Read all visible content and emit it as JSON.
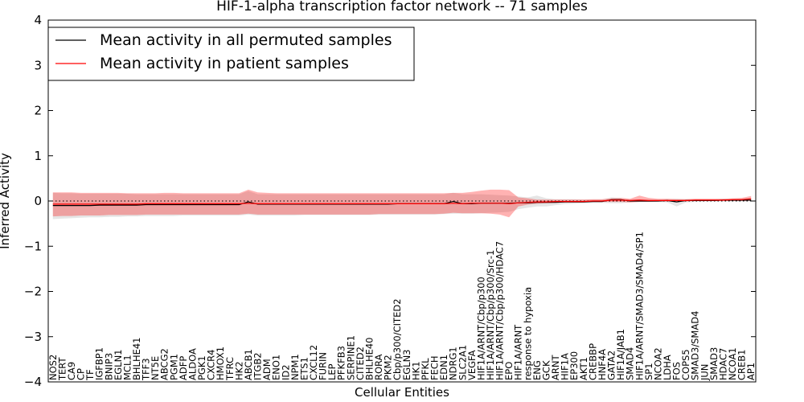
{
  "chart_data": {
    "type": "line",
    "title": "HIF-1-alpha transcription factor network -- 71 samples",
    "xlabel": "Cellular Entities",
    "ylabel": "Inferred Activity",
    "ylim": [
      -4,
      4
    ],
    "yticks": [
      -4,
      -3,
      -2,
      -1,
      0,
      1,
      2,
      3,
      4
    ],
    "reference_line": 0,
    "legend": {
      "position": "top-left",
      "entries": [
        {
          "label": "Mean activity in all permuted samples",
          "color": "#000000"
        },
        {
          "label": "Mean activity in patient samples",
          "color": "#ff0000"
        }
      ]
    },
    "colors": {
      "permuted_line": "#000000",
      "permuted_band": "#aaaaaa",
      "patient_line": "#ff0000",
      "patient_band": "#ff0000"
    },
    "categories": [
      "NOS2",
      "TERT",
      "CA9",
      "CP",
      "TF",
      "IGFBP1",
      "BNIP3",
      "EGLN1",
      "MCL1",
      "BHLHE41",
      "TFF3",
      "NT5E",
      "ABCG2",
      "PGM1",
      "ADFP",
      "ALDOA",
      "PGK1",
      "CXCR4",
      "HMOX1",
      "TFRC",
      "HK2",
      "ABCB1",
      "ITGB2",
      "ADM",
      "ENO1",
      "ID2",
      "NPM1",
      "ETS1",
      "CXCL12",
      "FURIN",
      "LEP",
      "PFKFB3",
      "SERPINE1",
      "CITED2",
      "BHLHE40",
      "RORA",
      "PKM2",
      "Cbp/p300/CITED2",
      "EGLN3",
      "HK1",
      "PFKL",
      "FECH",
      "EDN1",
      "NDRG1",
      "SLC2A1",
      "VEGFA",
      "HIF1A/ARNT/Cbp/p300",
      "HIF1A/ARNT/Cbp/p300/Src-1",
      "HIF1A/ARNT/Cbp/p300/HDAC7",
      "EPO",
      "HIF1A/ARNT",
      "response to hypoxia",
      "ENG",
      "GCK",
      "ARNT",
      "HIF1A",
      "EP300",
      "AKT1",
      "CREBBP",
      "HNF4A",
      "GATA2",
      "HIF1A/JAB1",
      "SMAD4",
      "HIF1A/ARNT/SMAD3/SMAD4/SP1",
      "SP1",
      "NCOA2",
      "LDHA",
      "FOS",
      "COPS5",
      "SMAD3/SMAD4",
      "JUN",
      "SMAD3",
      "HDAC7",
      "NCOA1",
      "CREB1",
      "AP1"
    ],
    "series": [
      {
        "name": "Mean activity in all permuted samples",
        "values": [
          -0.1,
          -0.1,
          -0.1,
          -0.1,
          -0.1,
          -0.09,
          -0.09,
          -0.09,
          -0.09,
          -0.09,
          -0.08,
          -0.08,
          -0.08,
          -0.08,
          -0.08,
          -0.08,
          -0.08,
          -0.08,
          -0.08,
          -0.08,
          -0.08,
          -0.02,
          -0.07,
          -0.07,
          -0.07,
          -0.07,
          -0.07,
          -0.07,
          -0.07,
          -0.07,
          -0.07,
          -0.07,
          -0.07,
          -0.07,
          -0.07,
          -0.07,
          -0.07,
          -0.06,
          -0.06,
          -0.06,
          -0.06,
          -0.06,
          -0.06,
          -0.01,
          -0.06,
          -0.06,
          -0.05,
          -0.05,
          -0.05,
          -0.05,
          -0.04,
          -0.04,
          -0.03,
          -0.03,
          -0.03,
          -0.02,
          -0.02,
          -0.02,
          -0.01,
          -0.01,
          0.03,
          0.03,
          0.0,
          0.0,
          0.0,
          0.0,
          0.01,
          -0.02,
          0.01,
          0.01,
          0.01,
          0.01,
          0.02,
          0.02,
          0.02,
          0.02
        ],
        "band_lower": [
          -0.4,
          -0.39,
          -0.38,
          -0.37,
          -0.36,
          -0.36,
          -0.35,
          -0.35,
          -0.34,
          -0.34,
          -0.33,
          -0.33,
          -0.33,
          -0.33,
          -0.32,
          -0.32,
          -0.32,
          -0.32,
          -0.32,
          -0.32,
          -0.32,
          -0.3,
          -0.32,
          -0.32,
          -0.32,
          -0.32,
          -0.32,
          -0.31,
          -0.31,
          -0.31,
          -0.31,
          -0.31,
          -0.31,
          -0.31,
          -0.31,
          -0.3,
          -0.3,
          -0.3,
          -0.3,
          -0.3,
          -0.3,
          -0.3,
          -0.29,
          -0.28,
          -0.28,
          -0.28,
          -0.27,
          -0.26,
          -0.25,
          -0.24,
          -0.18,
          -0.15,
          -0.12,
          -0.12,
          -0.09,
          -0.07,
          -0.06,
          -0.05,
          -0.04,
          -0.04,
          -0.05,
          -0.05,
          -0.03,
          -0.02,
          -0.02,
          -0.02,
          -0.03,
          -0.12,
          -0.03,
          -0.02,
          -0.01,
          -0.01,
          -0.01,
          -0.01,
          -0.01,
          -0.01
        ],
        "band_upper": [
          0.18,
          0.17,
          0.17,
          0.16,
          0.16,
          0.16,
          0.16,
          0.16,
          0.16,
          0.15,
          0.15,
          0.15,
          0.15,
          0.15,
          0.15,
          0.15,
          0.15,
          0.15,
          0.15,
          0.15,
          0.15,
          0.22,
          0.15,
          0.15,
          0.15,
          0.15,
          0.15,
          0.15,
          0.15,
          0.15,
          0.15,
          0.15,
          0.15,
          0.15,
          0.15,
          0.15,
          0.15,
          0.15,
          0.15,
          0.15,
          0.15,
          0.15,
          0.15,
          0.18,
          0.15,
          0.15,
          0.15,
          0.14,
          0.13,
          0.12,
          0.1,
          0.08,
          0.12,
          0.06,
          0.04,
          0.04,
          0.04,
          0.03,
          0.03,
          0.03,
          0.08,
          0.06,
          0.03,
          0.03,
          0.03,
          0.03,
          0.04,
          0.05,
          0.04,
          0.04,
          0.04,
          0.04,
          0.05,
          0.05,
          0.05,
          0.05
        ]
      },
      {
        "name": "Mean activity in patient samples",
        "values": [
          -0.07,
          -0.07,
          -0.07,
          -0.07,
          -0.07,
          -0.07,
          -0.07,
          -0.07,
          -0.07,
          -0.07,
          -0.06,
          -0.06,
          -0.06,
          -0.06,
          -0.06,
          -0.06,
          -0.06,
          -0.06,
          -0.06,
          -0.06,
          -0.06,
          -0.05,
          -0.06,
          -0.06,
          -0.06,
          -0.06,
          -0.06,
          -0.06,
          -0.06,
          -0.06,
          -0.06,
          -0.06,
          -0.06,
          -0.06,
          -0.06,
          -0.06,
          -0.06,
          -0.06,
          -0.06,
          -0.06,
          -0.06,
          -0.06,
          -0.06,
          -0.05,
          -0.06,
          -0.05,
          -0.05,
          -0.05,
          -0.05,
          -0.06,
          -0.04,
          -0.03,
          -0.02,
          -0.02,
          -0.01,
          -0.01,
          -0.01,
          -0.01,
          0.0,
          0.0,
          0.02,
          0.02,
          0.01,
          0.02,
          0.01,
          0.01,
          0.01,
          0.01,
          0.01,
          0.02,
          0.02,
          0.02,
          0.02,
          0.03,
          0.03,
          0.05
        ],
        "band_lower": [
          -0.34,
          -0.33,
          -0.33,
          -0.32,
          -0.32,
          -0.32,
          -0.31,
          -0.31,
          -0.31,
          -0.31,
          -0.3,
          -0.3,
          -0.3,
          -0.3,
          -0.3,
          -0.3,
          -0.3,
          -0.3,
          -0.3,
          -0.3,
          -0.3,
          -0.28,
          -0.3,
          -0.3,
          -0.3,
          -0.3,
          -0.3,
          -0.3,
          -0.3,
          -0.3,
          -0.3,
          -0.3,
          -0.3,
          -0.3,
          -0.3,
          -0.29,
          -0.29,
          -0.29,
          -0.29,
          -0.29,
          -0.29,
          -0.29,
          -0.28,
          -0.26,
          -0.27,
          -0.27,
          -0.27,
          -0.28,
          -0.3,
          -0.36,
          -0.12,
          -0.08,
          -0.06,
          -0.05,
          -0.04,
          -0.03,
          -0.03,
          -0.03,
          -0.02,
          -0.02,
          -0.02,
          -0.02,
          -0.03,
          -0.02,
          -0.02,
          -0.01,
          -0.01,
          -0.01,
          -0.01,
          0.0,
          0.0,
          0.0,
          0.0,
          0.0,
          0.0,
          0.0
        ],
        "band_upper": [
          0.19,
          0.19,
          0.19,
          0.18,
          0.18,
          0.18,
          0.18,
          0.18,
          0.17,
          0.17,
          0.17,
          0.17,
          0.18,
          0.18,
          0.17,
          0.17,
          0.17,
          0.17,
          0.17,
          0.17,
          0.17,
          0.25,
          0.19,
          0.18,
          0.17,
          0.17,
          0.17,
          0.17,
          0.17,
          0.17,
          0.17,
          0.17,
          0.17,
          0.17,
          0.17,
          0.17,
          0.17,
          0.17,
          0.17,
          0.17,
          0.17,
          0.17,
          0.17,
          0.18,
          0.18,
          0.2,
          0.23,
          0.25,
          0.25,
          0.24,
          0.08,
          0.06,
          0.03,
          0.03,
          0.03,
          0.03,
          0.03,
          0.03,
          0.04,
          0.04,
          0.06,
          0.07,
          0.05,
          0.12,
          0.07,
          0.05,
          0.05,
          0.04,
          0.04,
          0.05,
          0.05,
          0.05,
          0.05,
          0.06,
          0.07,
          0.11
        ]
      }
    ]
  }
}
